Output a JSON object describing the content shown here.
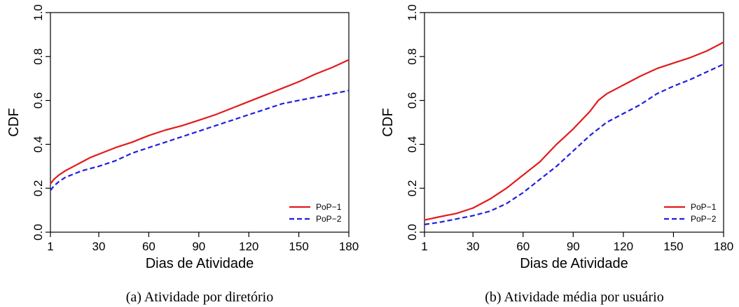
{
  "colors": {
    "pop1": "#e31a1c",
    "pop2": "#1f1fe0"
  },
  "chart_data": [
    {
      "type": "line",
      "caption": "(a)  Atividade por diretório",
      "xlabel": "Dias de Atividade",
      "ylabel": "CDF",
      "xlim": [
        1,
        180
      ],
      "ylim": [
        0.0,
        1.0
      ],
      "xticks": [
        "1",
        "30",
        "60",
        "90",
        "120",
        "150",
        "180"
      ],
      "yticks": [
        "0.0",
        "0.2",
        "0.4",
        "0.6",
        "0.8",
        "1.0"
      ],
      "legend": {
        "placement": "bottom-right"
      },
      "grid": false,
      "series": [
        {
          "name": "PoP−1",
          "style": "solid",
          "x": [
            1,
            3,
            6,
            10,
            15,
            20,
            25,
            30,
            40,
            50,
            60,
            70,
            80,
            90,
            100,
            110,
            120,
            130,
            140,
            150,
            160,
            170,
            180
          ],
          "y": [
            0.22,
            0.24,
            0.26,
            0.28,
            0.3,
            0.32,
            0.34,
            0.355,
            0.385,
            0.41,
            0.44,
            0.465,
            0.485,
            0.51,
            0.535,
            0.565,
            0.595,
            0.625,
            0.655,
            0.685,
            0.72,
            0.75,
            0.785
          ]
        },
        {
          "name": "PoP−2",
          "style": "dashed",
          "x": [
            1,
            3,
            6,
            10,
            15,
            20,
            30,
            40,
            50,
            60,
            70,
            80,
            90,
            100,
            110,
            120,
            130,
            140,
            150,
            160,
            170,
            180
          ],
          "y": [
            0.19,
            0.21,
            0.23,
            0.25,
            0.265,
            0.28,
            0.3,
            0.325,
            0.36,
            0.385,
            0.41,
            0.435,
            0.46,
            0.485,
            0.51,
            0.535,
            0.56,
            0.585,
            0.6,
            0.615,
            0.63,
            0.645
          ]
        }
      ]
    },
    {
      "type": "line",
      "caption": "(b)  Atividade média por usuário",
      "xlabel": "Dias de Atividade",
      "ylabel": "CDF",
      "xlim": [
        1,
        180
      ],
      "ylim": [
        0.0,
        1.0
      ],
      "xticks": [
        "1",
        "30",
        "60",
        "90",
        "120",
        "150",
        "180"
      ],
      "yticks": [
        "0.0",
        "0.2",
        "0.4",
        "0.6",
        "0.8",
        "1.0"
      ],
      "legend": {
        "placement": "bottom-right"
      },
      "grid": false,
      "series": [
        {
          "name": "PoP−1",
          "style": "solid",
          "x": [
            1,
            10,
            20,
            30,
            40,
            50,
            60,
            70,
            75,
            80,
            90,
            100,
            105,
            110,
            120,
            130,
            140,
            150,
            160,
            170,
            180
          ],
          "y": [
            0.055,
            0.07,
            0.085,
            0.11,
            0.15,
            0.2,
            0.26,
            0.32,
            0.36,
            0.4,
            0.47,
            0.55,
            0.6,
            0.63,
            0.67,
            0.71,
            0.745,
            0.77,
            0.795,
            0.825,
            0.865
          ]
        },
        {
          "name": "PoP−2",
          "style": "dashed",
          "x": [
            1,
            10,
            20,
            30,
            40,
            50,
            60,
            70,
            80,
            90,
            100,
            110,
            120,
            130,
            140,
            150,
            160,
            170,
            180
          ],
          "y": [
            0.035,
            0.045,
            0.06,
            0.075,
            0.095,
            0.13,
            0.18,
            0.24,
            0.3,
            0.37,
            0.44,
            0.5,
            0.54,
            0.58,
            0.63,
            0.665,
            0.695,
            0.73,
            0.765
          ]
        }
      ]
    }
  ]
}
